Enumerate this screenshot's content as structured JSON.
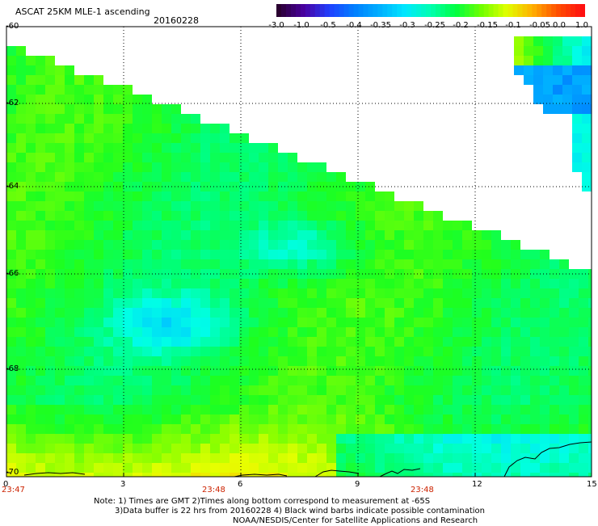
{
  "header": {
    "title": "ASCAT 25KM MLE-1 ascending",
    "date": "20160228"
  },
  "colorbar": {
    "labels": [
      "-3.0",
      "-1.0",
      "-0.5",
      "-0.4",
      "-0.35",
      "-0.3",
      "-0.25",
      "-0.2",
      "-0.15",
      "-0.1",
      "-0.05",
      "0.0",
      "1.0"
    ],
    "colors": [
      "#2a0030",
      "#4a00a0",
      "#2040ff",
      "#0080ff",
      "#00b0ff",
      "#00e8ff",
      "#00ffb0",
      "#00ff40",
      "#70ff00",
      "#e0ff00",
      "#ffb000",
      "#ff5000",
      "#ff1010"
    ]
  },
  "axes": {
    "y_ticks": [
      "-60",
      "-62",
      "-64",
      "-66",
      "-68",
      "-70"
    ],
    "x_ticks": [
      "0",
      "3",
      "6",
      "9",
      "12",
      "15"
    ],
    "time_labels": [
      "23:47",
      "23:48",
      "23:48"
    ]
  },
  "notes": [
    "Note: 1) Times are GMT 2)Times along bottom correspond to measurement at -65S",
    "3)Data buffer is 22 hrs from 20160228 4) Black wind barbs indicate possible contamination",
    "NOAA/NESDIS/Center for Satellite Applications and Research"
  ]
}
